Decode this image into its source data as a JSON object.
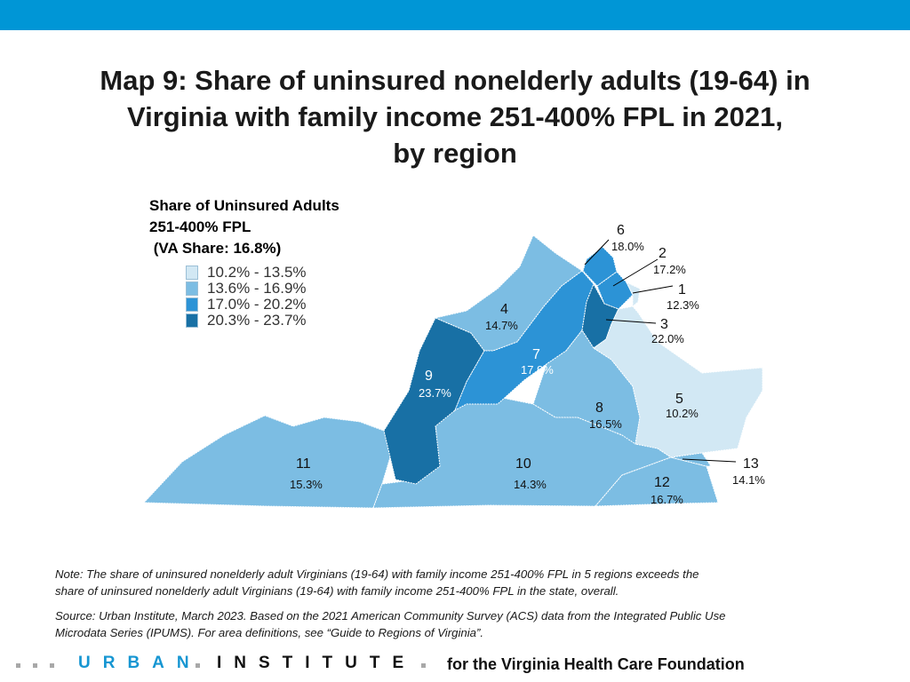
{
  "colors": {
    "topbar": "#0096d6",
    "bin1": "#d2e8f4",
    "bin2": "#7cbde3",
    "bin3": "#2c93d6",
    "bin4": "#1870a5",
    "border": "#ffffff"
  },
  "title": {
    "line1": "Map 9: Share of uninsured nonelderly adults (19-64) in",
    "line2": "Virginia with family income 251-400% FPL in 2021,",
    "line3": "by region"
  },
  "legend": {
    "title_line1": "Share of Uninsured Adults",
    "title_line2": "251-400% FPL",
    "title_line3": " (VA Share: 16.8%)",
    "bins": [
      {
        "label": "10.2% - 13.5%"
      },
      {
        "label": "13.6% - 16.9%"
      },
      {
        "label": "17.0% - 20.2%"
      },
      {
        "label": "20.3% - 23.7%"
      }
    ]
  },
  "regions": [
    {
      "id": "1",
      "value": "12.3%"
    },
    {
      "id": "2",
      "value": "17.2%"
    },
    {
      "id": "3",
      "value": "22.0%"
    },
    {
      "id": "4",
      "value": "14.7%"
    },
    {
      "id": "5",
      "value": "10.2%"
    },
    {
      "id": "6",
      "value": "18.0%"
    },
    {
      "id": "7",
      "value": "17.9%"
    },
    {
      "id": "8",
      "value": "16.5%"
    },
    {
      "id": "9",
      "value": "23.7%"
    },
    {
      "id": "10",
      "value": "14.3%"
    },
    {
      "id": "11",
      "value": "15.3%"
    },
    {
      "id": "12",
      "value": "16.7%"
    },
    {
      "id": "13",
      "value": "14.1%"
    }
  ],
  "notes": {
    "note_line1": "Note: The share of uninsured nonelderly adult Virginians (19-64) with family income 251-400% FPL in 5 regions exceeds the",
    "note_line2": "share of uninsured nonelderly adult Virginians (19-64) with family income 251-400% FPL in the state, overall.",
    "source_line1": "Source: Urban Institute, March 2023. Based on the 2021 American Community Survey (ACS) data from the Integrated Public Use",
    "source_line2": "Microdata Series (IPUMS). For area definitions, see “Guide to Regions of Virginia”."
  },
  "footer": {
    "brand_part1": "URBAN",
    "brand_part2": "INSTITUTE",
    "foundation": "for the Virginia Health Care Foundation"
  }
}
